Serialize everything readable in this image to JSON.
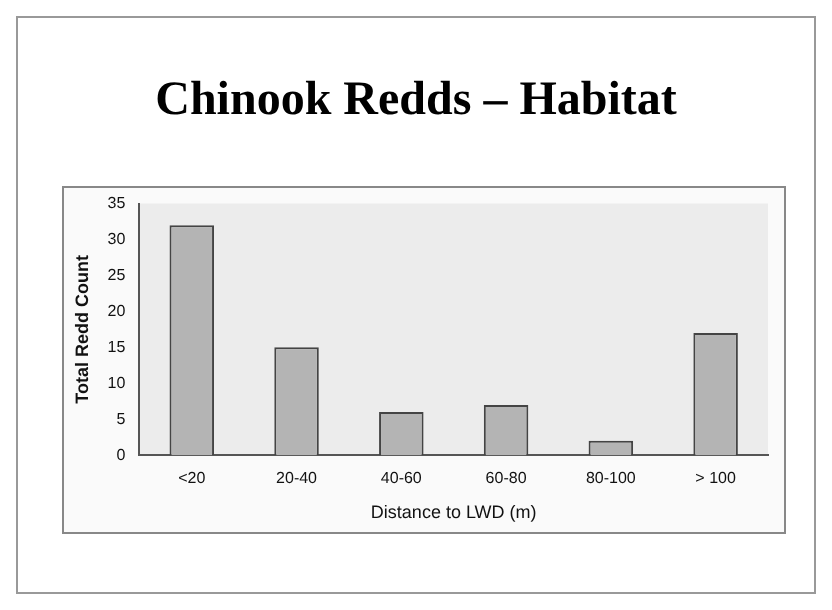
{
  "chart_data": {
    "type": "bar",
    "title": "Chinook Redds – Habitat",
    "xlabel": "Distance to LWD (m)",
    "ylabel": "Total Redd Count",
    "categories": [
      "<20",
      "20-40",
      "40-60",
      "60-80",
      "80-100",
      "> 100"
    ],
    "values": [
      32,
      15,
      6,
      7,
      2,
      17
    ],
    "color": "#b4b4b4",
    "ylim": [
      0,
      35
    ],
    "yticks": [
      0,
      5,
      10,
      15,
      20,
      25,
      30,
      35
    ],
    "grid": false,
    "legend": false
  }
}
